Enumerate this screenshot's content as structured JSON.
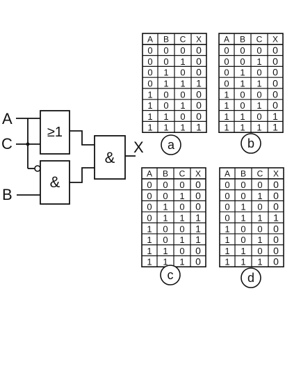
{
  "circuit": {
    "inputs": {
      "a": "A",
      "c": "C",
      "b": "B"
    },
    "output": "X",
    "gates": {
      "or_symbol": "≥1",
      "and_symbol": "&"
    }
  },
  "tables": [
    {
      "id": "a",
      "label": "a",
      "headers": [
        "A",
        "B",
        "C",
        "X"
      ],
      "rows": [
        [
          "0",
          "0",
          "0",
          "0"
        ],
        [
          "0",
          "0",
          "1",
          "0"
        ],
        [
          "0",
          "1",
          "0",
          "0"
        ],
        [
          "0",
          "1",
          "1",
          "1"
        ],
        [
          "1",
          "0",
          "0",
          "0"
        ],
        [
          "1",
          "0",
          "1",
          "0"
        ],
        [
          "1",
          "1",
          "0",
          "0"
        ],
        [
          "1",
          "1",
          "1",
          "1"
        ]
      ]
    },
    {
      "id": "b",
      "label": "b",
      "headers": [
        "A",
        "B",
        "C",
        "X"
      ],
      "rows": [
        [
          "0",
          "0",
          "0",
          "0"
        ],
        [
          "0",
          "0",
          "1",
          "0"
        ],
        [
          "0",
          "1",
          "0",
          "0"
        ],
        [
          "0",
          "1",
          "1",
          "0"
        ],
        [
          "1",
          "0",
          "0",
          "0"
        ],
        [
          "1",
          "0",
          "1",
          "0"
        ],
        [
          "1",
          "1",
          "0",
          "1"
        ],
        [
          "1",
          "1",
          "1",
          "1"
        ]
      ]
    },
    {
      "id": "c",
      "label": "c",
      "headers": [
        "A",
        "B",
        "C",
        "X"
      ],
      "rows": [
        [
          "0",
          "0",
          "0",
          "0"
        ],
        [
          "0",
          "0",
          "1",
          "0"
        ],
        [
          "0",
          "1",
          "0",
          "0"
        ],
        [
          "0",
          "1",
          "1",
          "1"
        ],
        [
          "1",
          "0",
          "0",
          "1"
        ],
        [
          "1",
          "0",
          "1",
          "1"
        ],
        [
          "1",
          "1",
          "0",
          "0"
        ],
        [
          "1",
          "1",
          "1",
          "0"
        ]
      ]
    },
    {
      "id": "d",
      "label": "d",
      "headers": [
        "A",
        "B",
        "C",
        "X"
      ],
      "rows": [
        [
          "0",
          "0",
          "0",
          "0"
        ],
        [
          "0",
          "0",
          "1",
          "0"
        ],
        [
          "0",
          "1",
          "0",
          "0"
        ],
        [
          "0",
          "1",
          "1",
          "1"
        ],
        [
          "1",
          "0",
          "0",
          "0"
        ],
        [
          "1",
          "0",
          "1",
          "0"
        ],
        [
          "1",
          "1",
          "0",
          "0"
        ],
        [
          "1",
          "1",
          "1",
          "0"
        ]
      ]
    }
  ]
}
